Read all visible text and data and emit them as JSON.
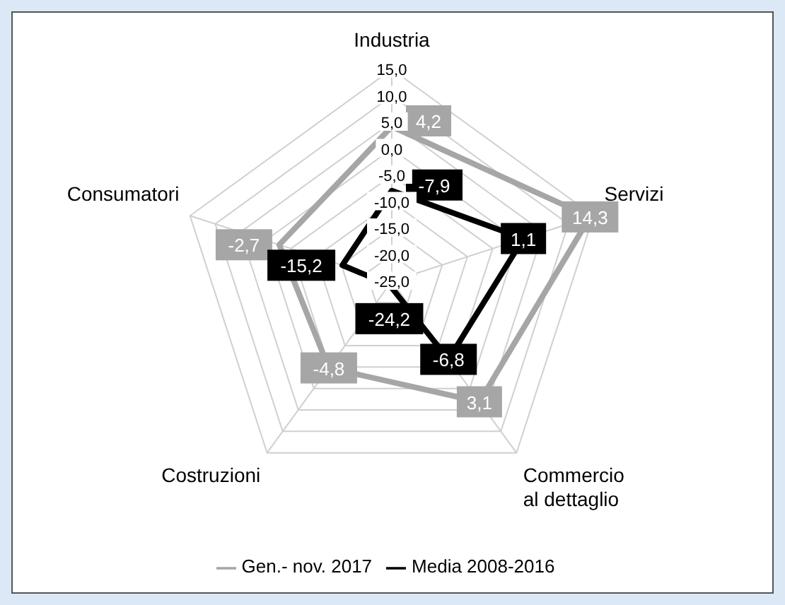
{
  "chart_data": {
    "type": "radar",
    "categories": [
      "Industria",
      "Servizi",
      "Commercio al dettaglio",
      "Costruzioni",
      "Consumatori"
    ],
    "series": [
      {
        "name": "Gen.- nov. 2017",
        "color": "#a6a6a6",
        "values": [
          4.2,
          14.3,
          3.1,
          -4.8,
          -2.7
        ],
        "value_labels": [
          "4,2",
          "14,3",
          "3,1",
          "-4,8",
          "-2,7"
        ]
      },
      {
        "name": "Media 2008-2016",
        "color": "#000000",
        "values": [
          -7.9,
          1.1,
          -6.8,
          -24.2,
          -15.2
        ],
        "value_labels": [
          "-7,9",
          "1,1",
          "-6,8",
          "-24,2",
          "-15,2"
        ]
      }
    ],
    "ylim": [
      -25,
      15
    ],
    "yticks": [
      {
        "value": -25,
        "label": "-25,0"
      },
      {
        "value": -20,
        "label": "-20,0"
      },
      {
        "value": -15,
        "label": "-15,0"
      },
      {
        "value": -10,
        "label": "-10,0"
      },
      {
        "value": -5,
        "label": "-5,0"
      },
      {
        "value": 0,
        "label": "0,0"
      },
      {
        "value": 5,
        "label": "5,0"
      },
      {
        "value": 10,
        "label": "10,0"
      },
      {
        "value": 15,
        "label": "15,0"
      }
    ],
    "grid": true,
    "legend": "bottom"
  }
}
